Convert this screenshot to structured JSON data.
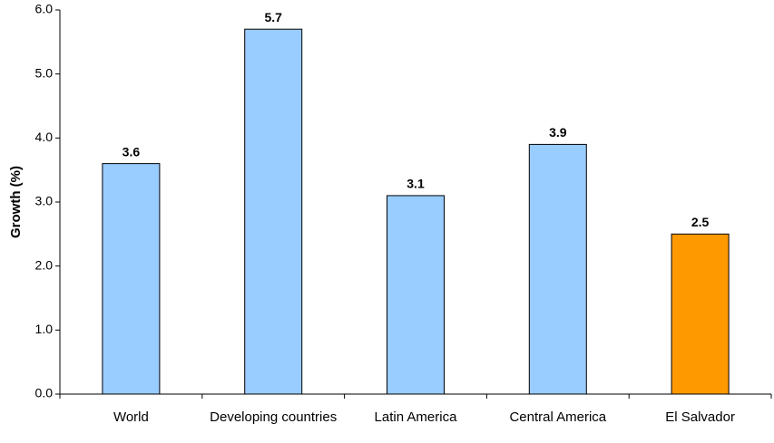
{
  "chart_data": {
    "type": "bar",
    "y_label": "Growth (%)",
    "categories": [
      "World",
      "Developing countries",
      "Latin America",
      "Central America",
      "El Salvador"
    ],
    "values": [
      3.6,
      5.7,
      3.1,
      3.9,
      2.5
    ],
    "colors": [
      "#99ccff",
      "#99ccff",
      "#99ccff",
      "#99ccff",
      "#ff9900"
    ],
    "ylim": [
      0,
      6
    ],
    "yticks": [
      {
        "value": 0,
        "label": "0.0"
      },
      {
        "value": 1,
        "label": "1.0"
      },
      {
        "value": 2,
        "label": "2.0"
      },
      {
        "value": 3,
        "label": "3.0"
      },
      {
        "value": 4,
        "label": "4.0"
      },
      {
        "value": 5,
        "label": "5.0"
      },
      {
        "value": 6,
        "label": "6.0"
      }
    ],
    "grid": false
  }
}
